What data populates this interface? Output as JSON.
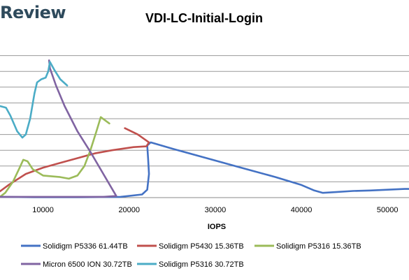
{
  "brand": {
    "text": "Review"
  },
  "chart_data": {
    "type": "line",
    "title": "VDI-LC-Initial-Login",
    "xlabel": "IOPS",
    "ylabel": "",
    "xlim": [
      5000,
      52500
    ],
    "ylim": [
      0,
      10
    ],
    "x_ticks": [
      10000,
      20000,
      30000,
      40000,
      50000
    ],
    "x_tick_labels": [
      "10000",
      "20000",
      "30000",
      "40000",
      "50000"
    ],
    "y_gridlines": [
      1,
      2,
      3,
      4,
      5,
      6,
      7,
      8,
      9
    ],
    "y_tick_labels_visible": false,
    "grid": true,
    "legend_position": "bottom",
    "series": [
      {
        "name": "Solidigm P5336 61.44TB",
        "color": "#4472c4",
        "points": [
          [
            5200,
            0.05
          ],
          [
            9000,
            0.02
          ],
          [
            14000,
            0.02
          ],
          [
            19000,
            0.05
          ],
          [
            21500,
            0.2
          ],
          [
            22100,
            0.5
          ],
          [
            22300,
            1.5
          ],
          [
            22200,
            2.5
          ],
          [
            22100,
            3.3
          ],
          [
            22500,
            3.5
          ],
          [
            25000,
            3.1
          ],
          [
            29000,
            2.5
          ],
          [
            33000,
            1.9
          ],
          [
            37000,
            1.3
          ],
          [
            40000,
            0.8
          ],
          [
            41500,
            0.45
          ],
          [
            42500,
            0.3
          ],
          [
            44000,
            0.35
          ],
          [
            46000,
            0.42
          ],
          [
            48000,
            0.45
          ],
          [
            50000,
            0.5
          ],
          [
            52000,
            0.55
          ],
          [
            52500,
            0.55
          ]
        ]
      },
      {
        "name": "Solidigm P5430 15.36TB",
        "color": "#c0504d",
        "points": [
          [
            5000,
            0.4
          ],
          [
            6000,
            0.8
          ],
          [
            8000,
            1.5
          ],
          [
            10000,
            1.9
          ],
          [
            12000,
            2.2
          ],
          [
            14000,
            2.5
          ],
          [
            16000,
            2.8
          ],
          [
            18000,
            3.0
          ],
          [
            20500,
            3.2
          ],
          [
            22000,
            3.25
          ],
          [
            22300,
            3.5
          ],
          [
            21000,
            4.0
          ],
          [
            19500,
            4.4
          ]
        ]
      },
      {
        "name": "Solidigm P5316 15.36TB",
        "color": "#9bbb59",
        "points": [
          [
            5000,
            0.05
          ],
          [
            5600,
            0.3
          ],
          [
            6500,
            1.0
          ],
          [
            7200,
            1.8
          ],
          [
            7700,
            2.4
          ],
          [
            8200,
            2.3
          ],
          [
            8800,
            1.8
          ],
          [
            10000,
            1.4
          ],
          [
            12000,
            1.3
          ],
          [
            13000,
            1.2
          ],
          [
            14000,
            1.4
          ],
          [
            14800,
            2.0
          ],
          [
            15500,
            3.0
          ],
          [
            16200,
            4.2
          ],
          [
            16700,
            5.1
          ],
          [
            17200,
            4.9
          ],
          [
            17700,
            4.7
          ]
        ]
      },
      {
        "name": "Micron 6500 ION 30.72TB",
        "color": "#8064a2",
        "points": [
          [
            5000,
            0.05
          ],
          [
            8000,
            0.05
          ],
          [
            11000,
            0.05
          ],
          [
            14000,
            0.05
          ],
          [
            17000,
            0.05
          ],
          [
            18500,
            0.1
          ],
          [
            17000,
            1.5
          ],
          [
            15500,
            2.9
          ],
          [
            14000,
            4.2
          ],
          [
            12500,
            5.8
          ],
          [
            11500,
            7.1
          ],
          [
            10800,
            8.2
          ],
          [
            10700,
            8.7
          ]
        ]
      },
      {
        "name": "Solidigm P5316 30.72TB",
        "color": "#4bacc6",
        "points": [
          [
            5000,
            5.8
          ],
          [
            5700,
            5.7
          ],
          [
            6200,
            5.2
          ],
          [
            7000,
            4.2
          ],
          [
            7600,
            3.8
          ],
          [
            8000,
            4.0
          ],
          [
            8500,
            5.0
          ],
          [
            9000,
            6.6
          ],
          [
            9300,
            7.3
          ],
          [
            9800,
            7.5
          ],
          [
            10300,
            7.6
          ],
          [
            10600,
            8.0
          ],
          [
            10800,
            8.6
          ],
          [
            11300,
            8.1
          ],
          [
            12000,
            7.5
          ],
          [
            12800,
            7.1
          ]
        ]
      }
    ]
  }
}
